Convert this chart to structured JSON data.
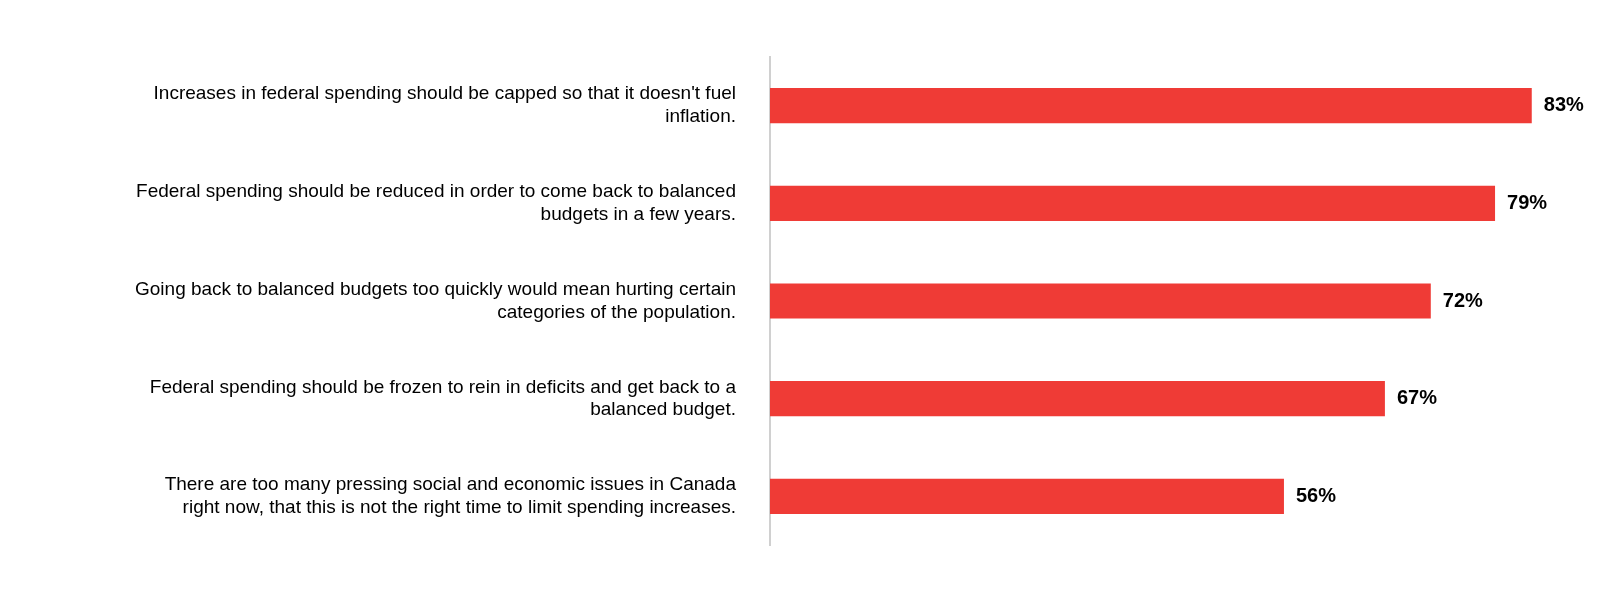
{
  "chart_data": {
    "type": "bar",
    "orientation": "horizontal",
    "categories": [
      "Increases in federal spending should be capped so that it doesn't fuel inflation.",
      "Federal spending should be reduced in order to come back to balanced budgets in a few years.",
      "Going back to balanced budgets too quickly would mean hurting certain categories of the population.",
      "Federal spending should be frozen to rein in deficits and get back to a balanced budget.",
      "There are too many pressing social and economic issues in Canada right now, that this is not the right time to limit spending increases."
    ],
    "values": [
      83,
      79,
      72,
      67,
      56
    ],
    "value_labels": [
      "83%",
      "79%",
      "72%",
      "67%",
      "56%"
    ],
    "color": "#ef3b36",
    "tick_labels": "y"
  }
}
